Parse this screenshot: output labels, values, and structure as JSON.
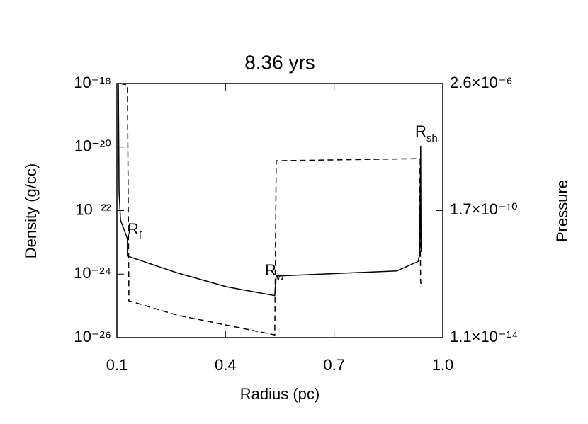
{
  "chart_data": {
    "type": "line",
    "title": "8.36 yrs",
    "xlabel": "Radius (pc)",
    "ylabel": "Density (g/cc)",
    "y2label": "Pressure",
    "xlim": [
      0.1,
      1.0
    ],
    "xticks": [
      0.1,
      0.4,
      0.7,
      {
        "value": 1.0,
        "label": "1.0"
      }
    ],
    "ylim": [
      1e-26,
      1e-18
    ],
    "ylog": true,
    "yticks": [
      {
        "value": 1e-26,
        "label": "10⁻²⁶"
      },
      {
        "value": 1e-24,
        "label": "10⁻²⁴"
      },
      {
        "value": 1e-22,
        "label": "10⁻²²"
      },
      {
        "value": 1e-20,
        "label": "10⁻²⁰"
      },
      {
        "value": 1e-18,
        "label": "10⁻¹⁸"
      }
    ],
    "y2lim": [
      1.1e-14,
      2.6e-06
    ],
    "y2log": true,
    "y2ticks": [
      {
        "value": 1.1e-14,
        "label": "1.1×10⁻¹⁴"
      },
      {
        "value": 1.7e-10,
        "label": "1.7×10⁻¹⁰"
      },
      {
        "value": 2.6e-06,
        "label": "2.6×10⁻⁶"
      }
    ],
    "series": [
      {
        "name": "Density",
        "color": "#000000",
        "dash": false,
        "x": [
          0.104,
          0.106,
          0.11,
          0.129,
          0.129,
          0.266,
          0.403,
          0.536,
          0.54,
          0.873,
          0.932,
          0.936,
          0.939,
          0.94
        ],
        "values": [
          1e-18,
          4e-22,
          5e-23,
          1.3e-23,
          3.7e-24,
          1.1e-24,
          4e-25,
          2.1e-25,
          8.7e-25,
          1.26e-24,
          2.5e-24,
          4e-24,
          1.1e-20,
          5e-24
        ]
      },
      {
        "name": "Pressure",
        "color": "#000000",
        "dash": true,
        "axis": "y2",
        "x": [
          0.11,
          0.129,
          0.133,
          0.133,
          0.266,
          0.536,
          0.54,
          0.935,
          0.939,
          0.951
        ],
        "values": [
          2.6e-06,
          2.3e-06,
          3.6e-13,
          1.8e-13,
          6.1e-14,
          1.35e-14,
          7.4e-09,
          8.7e-09,
          6.9e-13,
          6.3e-13
        ]
      }
    ],
    "annotations": [
      {
        "text": "R",
        "sub": "f"
      },
      {
        "text": "R",
        "sub": "w"
      },
      {
        "text": "R",
        "sub": "sh"
      }
    ]
  }
}
